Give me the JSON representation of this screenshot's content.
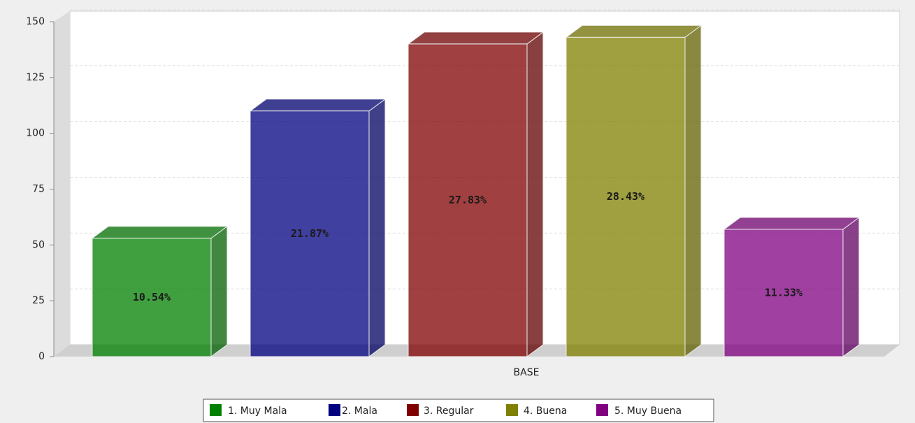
{
  "chart_data": {
    "type": "bar3d",
    "categories": [
      "BASE"
    ],
    "series": [
      {
        "name": "1. Muy Mala",
        "color": "#008000",
        "values": [
          53
        ],
        "data_labels": [
          "10.54%"
        ]
      },
      {
        "name": "2. Mala",
        "color": "#000080",
        "values": [
          110
        ],
        "data_labels": [
          "21.87%"
        ]
      },
      {
        "name": "3. Regular",
        "color": "#800000",
        "values": [
          140
        ],
        "data_labels": [
          "27.83%"
        ]
      },
      {
        "name": "4. Buena",
        "color": "#808000",
        "values": [
          143
        ],
        "data_labels": [
          "28.43%"
        ]
      },
      {
        "name": "5. Muy Buena",
        "color": "#800080",
        "values": [
          57
        ],
        "data_labels": [
          "11.33%"
        ]
      }
    ],
    "ylim": [
      0,
      150
    ],
    "yticks": [
      0,
      25,
      50,
      75,
      100,
      125,
      150
    ],
    "grid": true,
    "legend": "bottom"
  }
}
